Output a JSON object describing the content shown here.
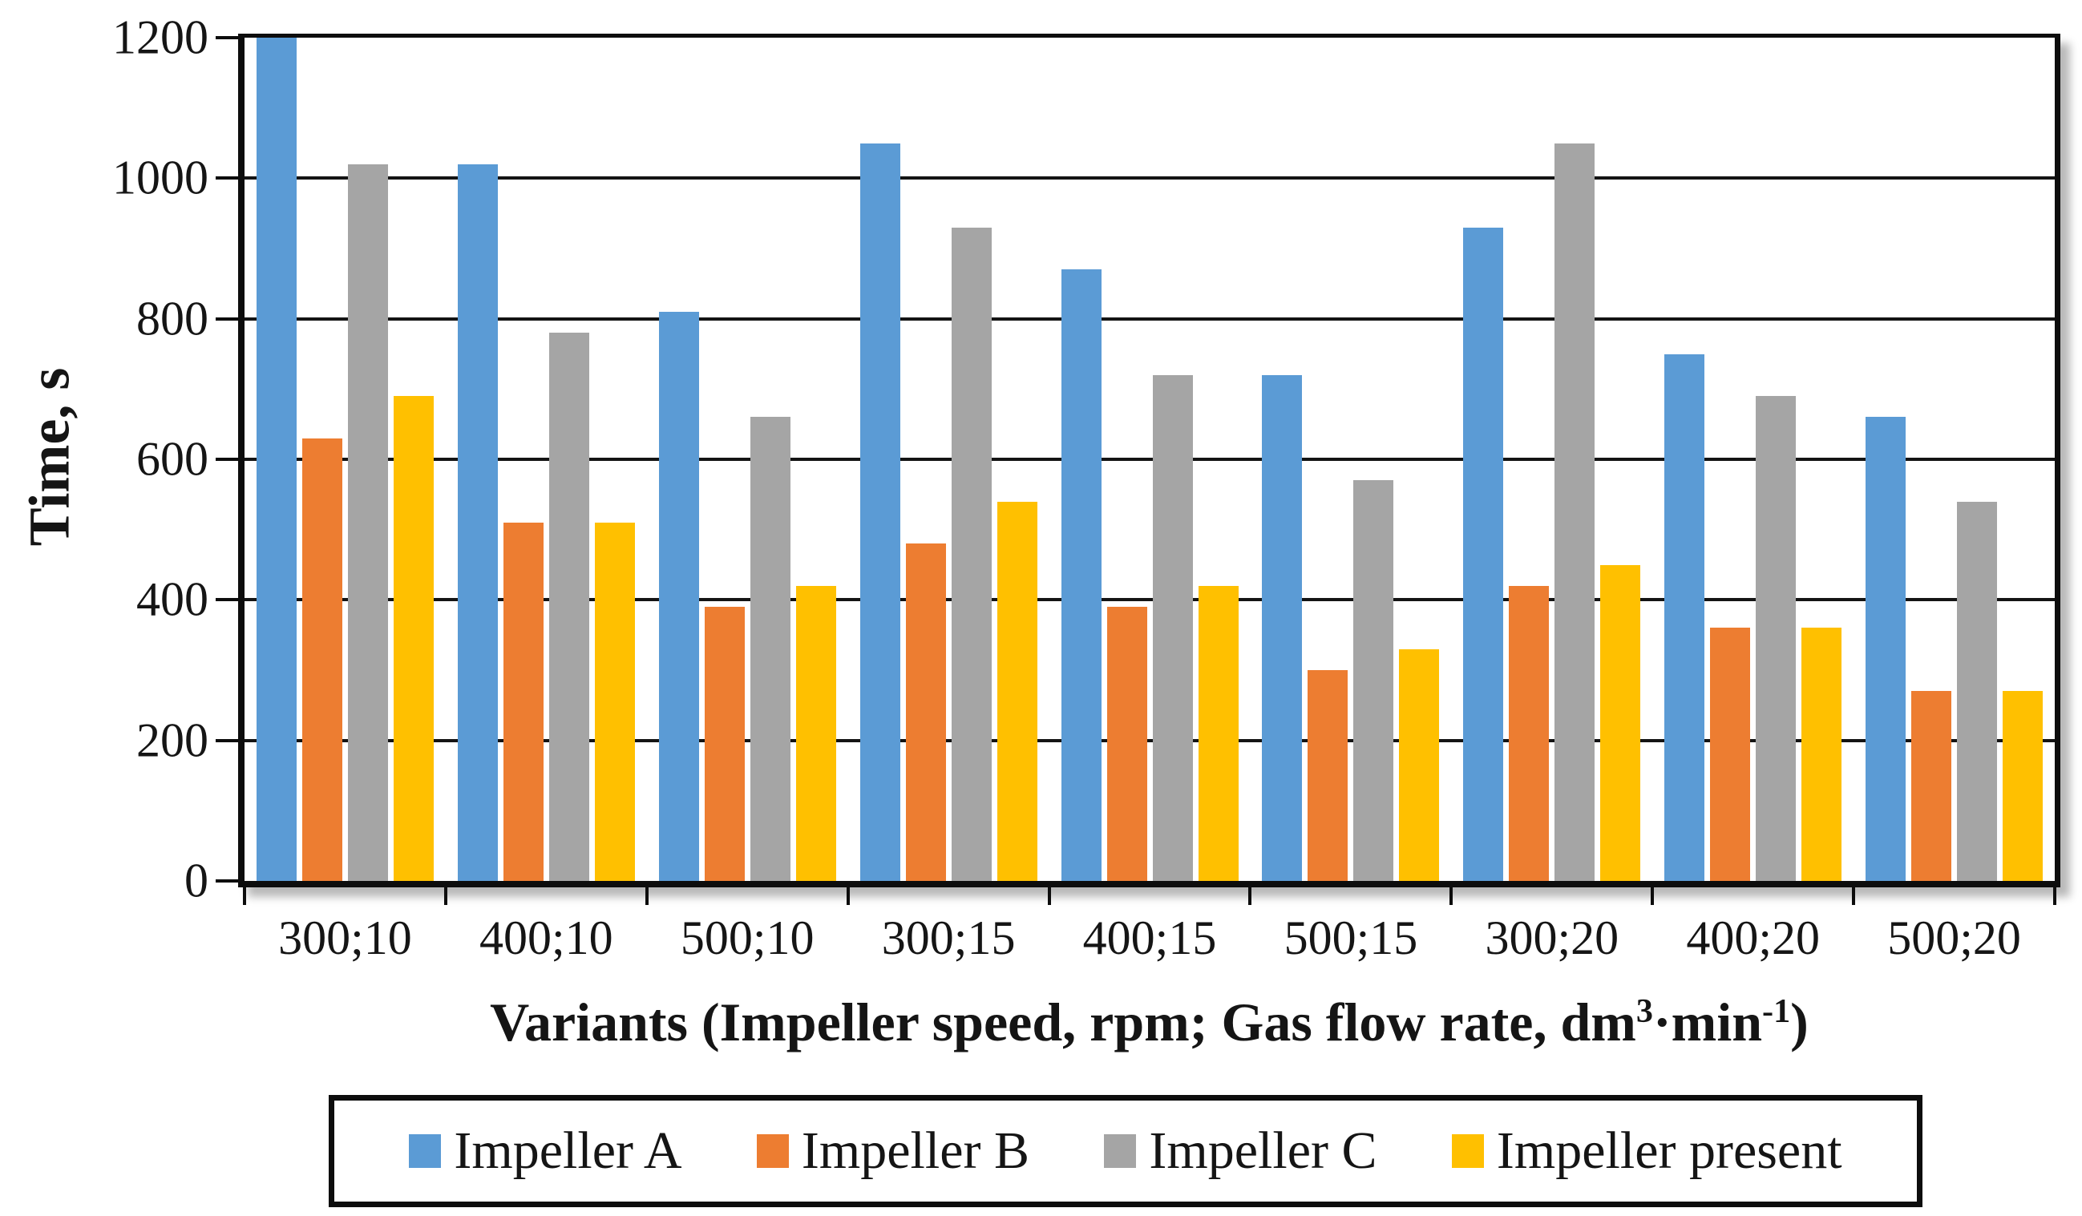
{
  "chart_data": {
    "type": "bar",
    "title": "",
    "ylabel": "Time, s",
    "xlabel_parts": {
      "base1": "Variants (Impeller speed, rpm; Gas flow rate, dm",
      "sup1": "3",
      "base2": "·min",
      "sup2": "-1",
      "base3": ")"
    },
    "categories": [
      "300;10",
      "400;10",
      "500;10",
      "300;15",
      "400;15",
      "500;15",
      "300;20",
      "400;20",
      "500;20"
    ],
    "series": [
      {
        "name": "Impeller A",
        "color": "#5B9BD5",
        "values": [
          1200,
          1020,
          810,
          1050,
          870,
          720,
          930,
          750,
          660
        ]
      },
      {
        "name": "Impeller B",
        "color": "#ED7D31",
        "values": [
          630,
          510,
          390,
          480,
          390,
          300,
          420,
          360,
          270
        ]
      },
      {
        "name": "Impeller C",
        "color": "#A5A5A5",
        "values": [
          1020,
          780,
          660,
          930,
          720,
          570,
          1050,
          690,
          540
        ]
      },
      {
        "name": "Impeller present",
        "color": "#FFC000",
        "values": [
          690,
          510,
          420,
          540,
          420,
          330,
          450,
          360,
          270
        ]
      }
    ],
    "ylim": [
      0,
      1200
    ],
    "yticks": [
      0,
      200,
      400,
      600,
      800,
      1000,
      1200
    ],
    "grid": true,
    "legend_position": "bottom",
    "axis_color": "#0d0d0d",
    "background_color": "#ffffff"
  }
}
